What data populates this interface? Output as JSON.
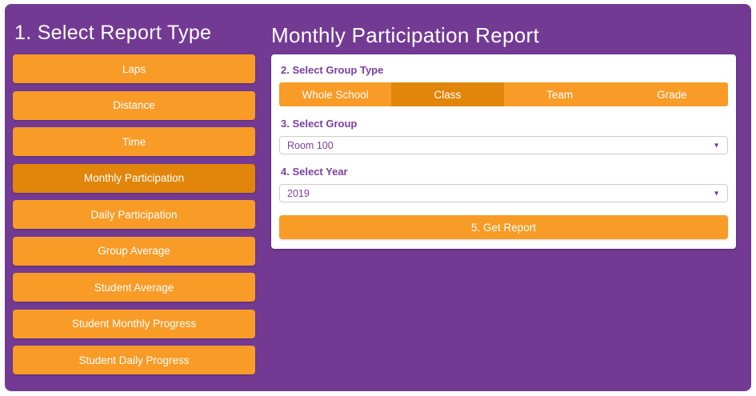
{
  "colors": {
    "background_purple": "#733A94",
    "orange": "#F89B27",
    "orange_selected": "#E1860A",
    "label_purple": "#7B3F9E",
    "card_white": "#FFFFFF"
  },
  "sidebar": {
    "title": "1. Select Report Type",
    "items": [
      {
        "label": "Laps",
        "selected": false
      },
      {
        "label": "Distance",
        "selected": false
      },
      {
        "label": "Time",
        "selected": false
      },
      {
        "label": "Monthly Participation",
        "selected": true
      },
      {
        "label": "Daily Participation",
        "selected": false
      },
      {
        "label": "Group Average",
        "selected": false
      },
      {
        "label": "Student Average",
        "selected": false
      },
      {
        "label": "Student Monthly Progress",
        "selected": false
      },
      {
        "label": "Student Daily Progress",
        "selected": false
      }
    ]
  },
  "main": {
    "title": "Monthly Participation Report",
    "group_type": {
      "label": "2. Select Group Type",
      "options": [
        {
          "label": "Whole School",
          "selected": false
        },
        {
          "label": "Class",
          "selected": true
        },
        {
          "label": "Team",
          "selected": false
        },
        {
          "label": "Grade",
          "selected": false
        }
      ]
    },
    "group": {
      "label": "3. Select Group",
      "value": "Room 100"
    },
    "year": {
      "label": "4. Select Year",
      "value": "2019"
    },
    "get_report_label": "5. Get Report",
    "dropdown_icon": "▼"
  }
}
